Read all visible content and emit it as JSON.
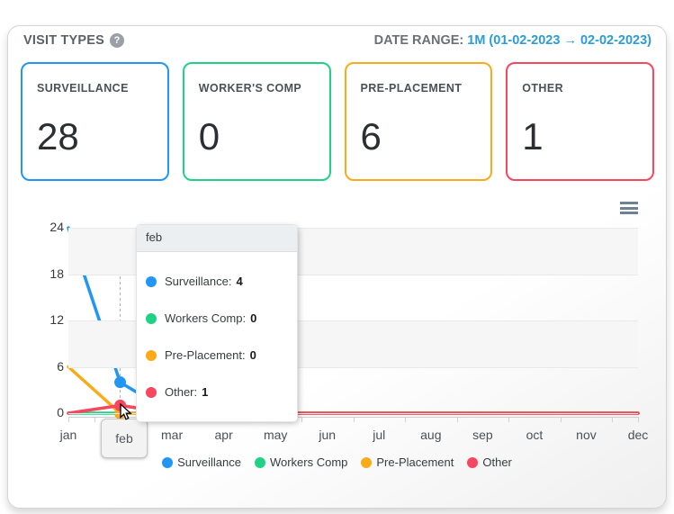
{
  "header": {
    "title": "VISIT TYPES",
    "help_icon": "?",
    "date_range_label": "DATE RANGE:",
    "date_range_value": "1M (01-02-2023 → 02-02-2023)"
  },
  "cards": [
    {
      "label": "SURVEILLANCE",
      "value": "28",
      "color": "#2196f3"
    },
    {
      "label": "WORKER'S COMP",
      "value": "0",
      "color": "#1fd286"
    },
    {
      "label": "PRE-PLACEMENT",
      "value": "6",
      "color": "#fbab19"
    },
    {
      "label": "OTHER",
      "value": "1",
      "color": "#f8465f"
    }
  ],
  "chart_data": {
    "type": "line",
    "x_categories": [
      "jan",
      "feb",
      "mar",
      "apr",
      "may",
      "jun",
      "jul",
      "aug",
      "sep",
      "oct",
      "nov",
      "dec"
    ],
    "series": [
      {
        "name": "Surveillance",
        "color": "#2196f3",
        "values": [
          24,
          4,
          0,
          0,
          0,
          0,
          0,
          0,
          0,
          0,
          0,
          0
        ]
      },
      {
        "name": "Workers Comp",
        "color": "#1fd286",
        "values": [
          0,
          0,
          0,
          0,
          0,
          0,
          0,
          0,
          0,
          0,
          0,
          0
        ]
      },
      {
        "name": "Pre-Placement",
        "color": "#fbab19",
        "values": [
          6,
          0,
          0,
          0,
          0,
          0,
          0,
          0,
          0,
          0,
          0,
          0
        ]
      },
      {
        "name": "Other",
        "color": "#f8465f",
        "values": [
          0,
          1,
          0,
          0,
          0,
          0,
          0,
          0,
          0,
          0,
          0,
          0
        ]
      }
    ],
    "yticks": [
      24,
      18,
      12,
      6,
      0
    ],
    "ylim": [
      0,
      24
    ],
    "legend_position": "bottom",
    "grid_bands": true,
    "hover_index": 1
  },
  "tooltip": {
    "title": "feb",
    "items": [
      {
        "label": "Surveillance:",
        "value": "4",
        "color": "#2196f3"
      },
      {
        "label": "Workers Comp:",
        "value": "0",
        "color": "#1fd286"
      },
      {
        "label": "Pre-Placement:",
        "value": "0",
        "color": "#fbab19"
      },
      {
        "label": "Other:",
        "value": "1",
        "color": "#f8465f"
      }
    ]
  },
  "x_crosshair_label": "feb",
  "icons": {
    "help": "help-circle-icon",
    "chart_menu": "hamburger-menu-icon",
    "pointer": "mouse-cursor-icon"
  }
}
